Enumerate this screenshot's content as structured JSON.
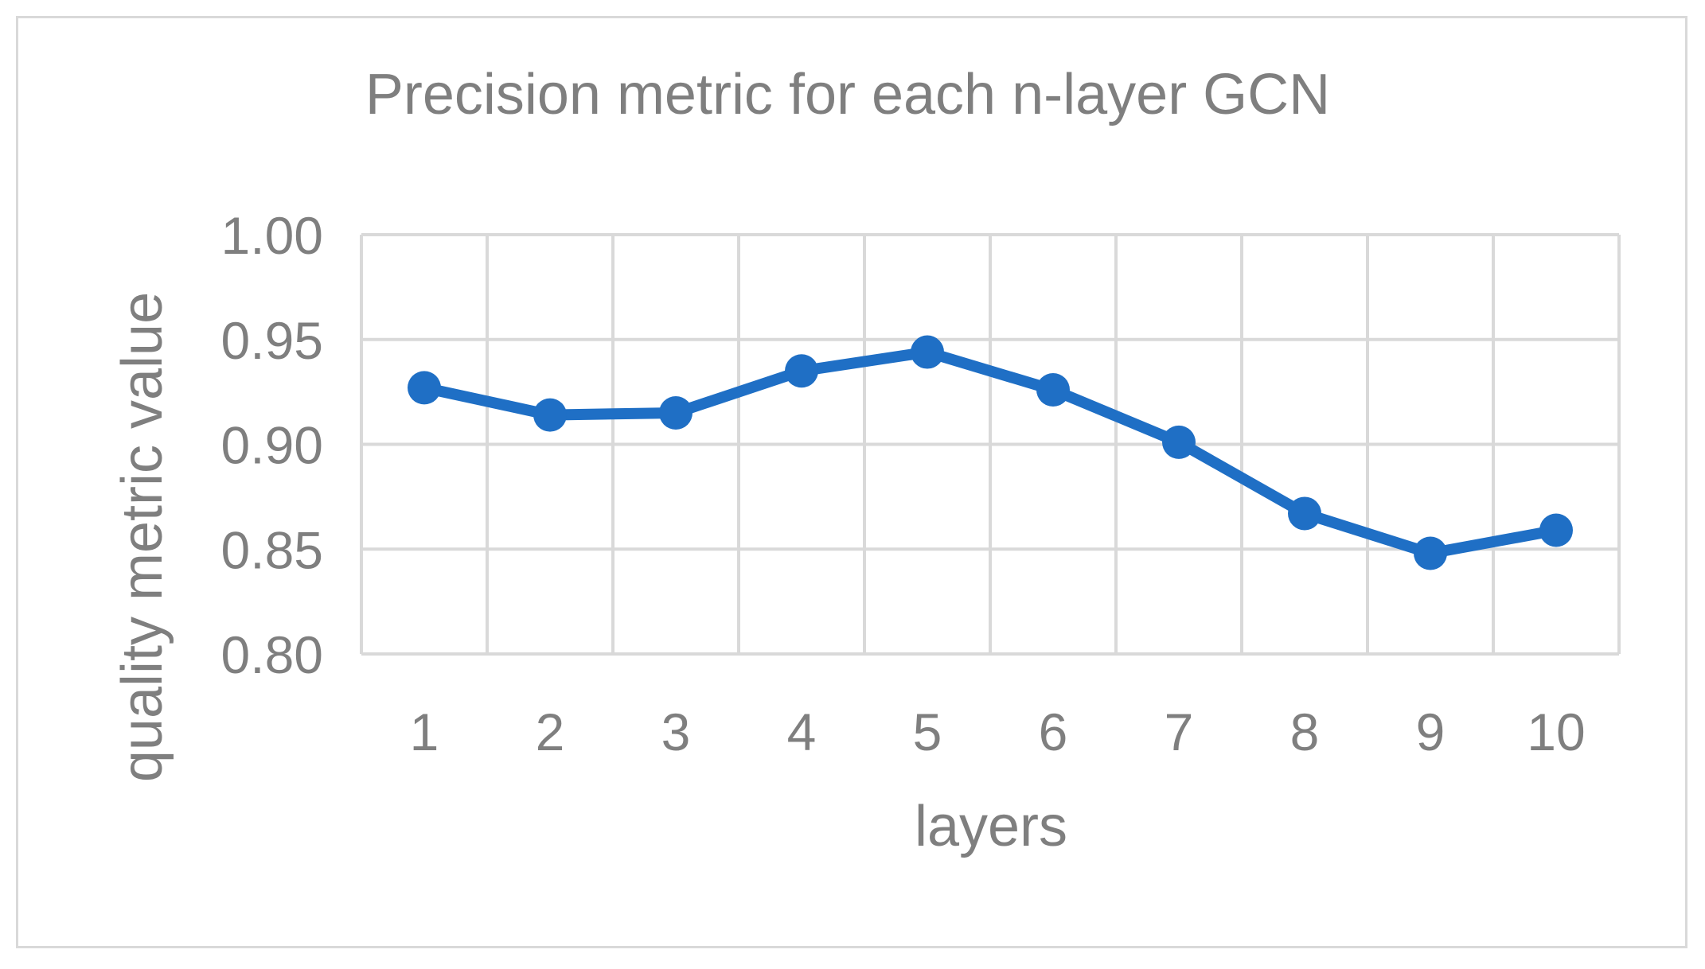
{
  "chart_data": {
    "type": "line",
    "title": "Precision metric for each n-layer GCN",
    "xlabel": "layers",
    "ylabel": "quality metric value",
    "categories": [
      "1",
      "2",
      "3",
      "4",
      "5",
      "6",
      "7",
      "8",
      "9",
      "10"
    ],
    "series": [
      {
        "values": [
          0.927,
          0.914,
          0.915,
          0.935,
          0.944,
          0.926,
          0.901,
          0.867,
          0.848,
          0.859
        ]
      }
    ],
    "ylim": [
      0.8,
      1.0
    ],
    "yticks": [
      "0.80",
      "0.85",
      "0.90",
      "0.95",
      "1.00"
    ],
    "grid": true,
    "legend": "none",
    "colors": {
      "line": "#1f6fc5",
      "grid": "#d9d9d9",
      "text": "#7f7f7f"
    }
  }
}
